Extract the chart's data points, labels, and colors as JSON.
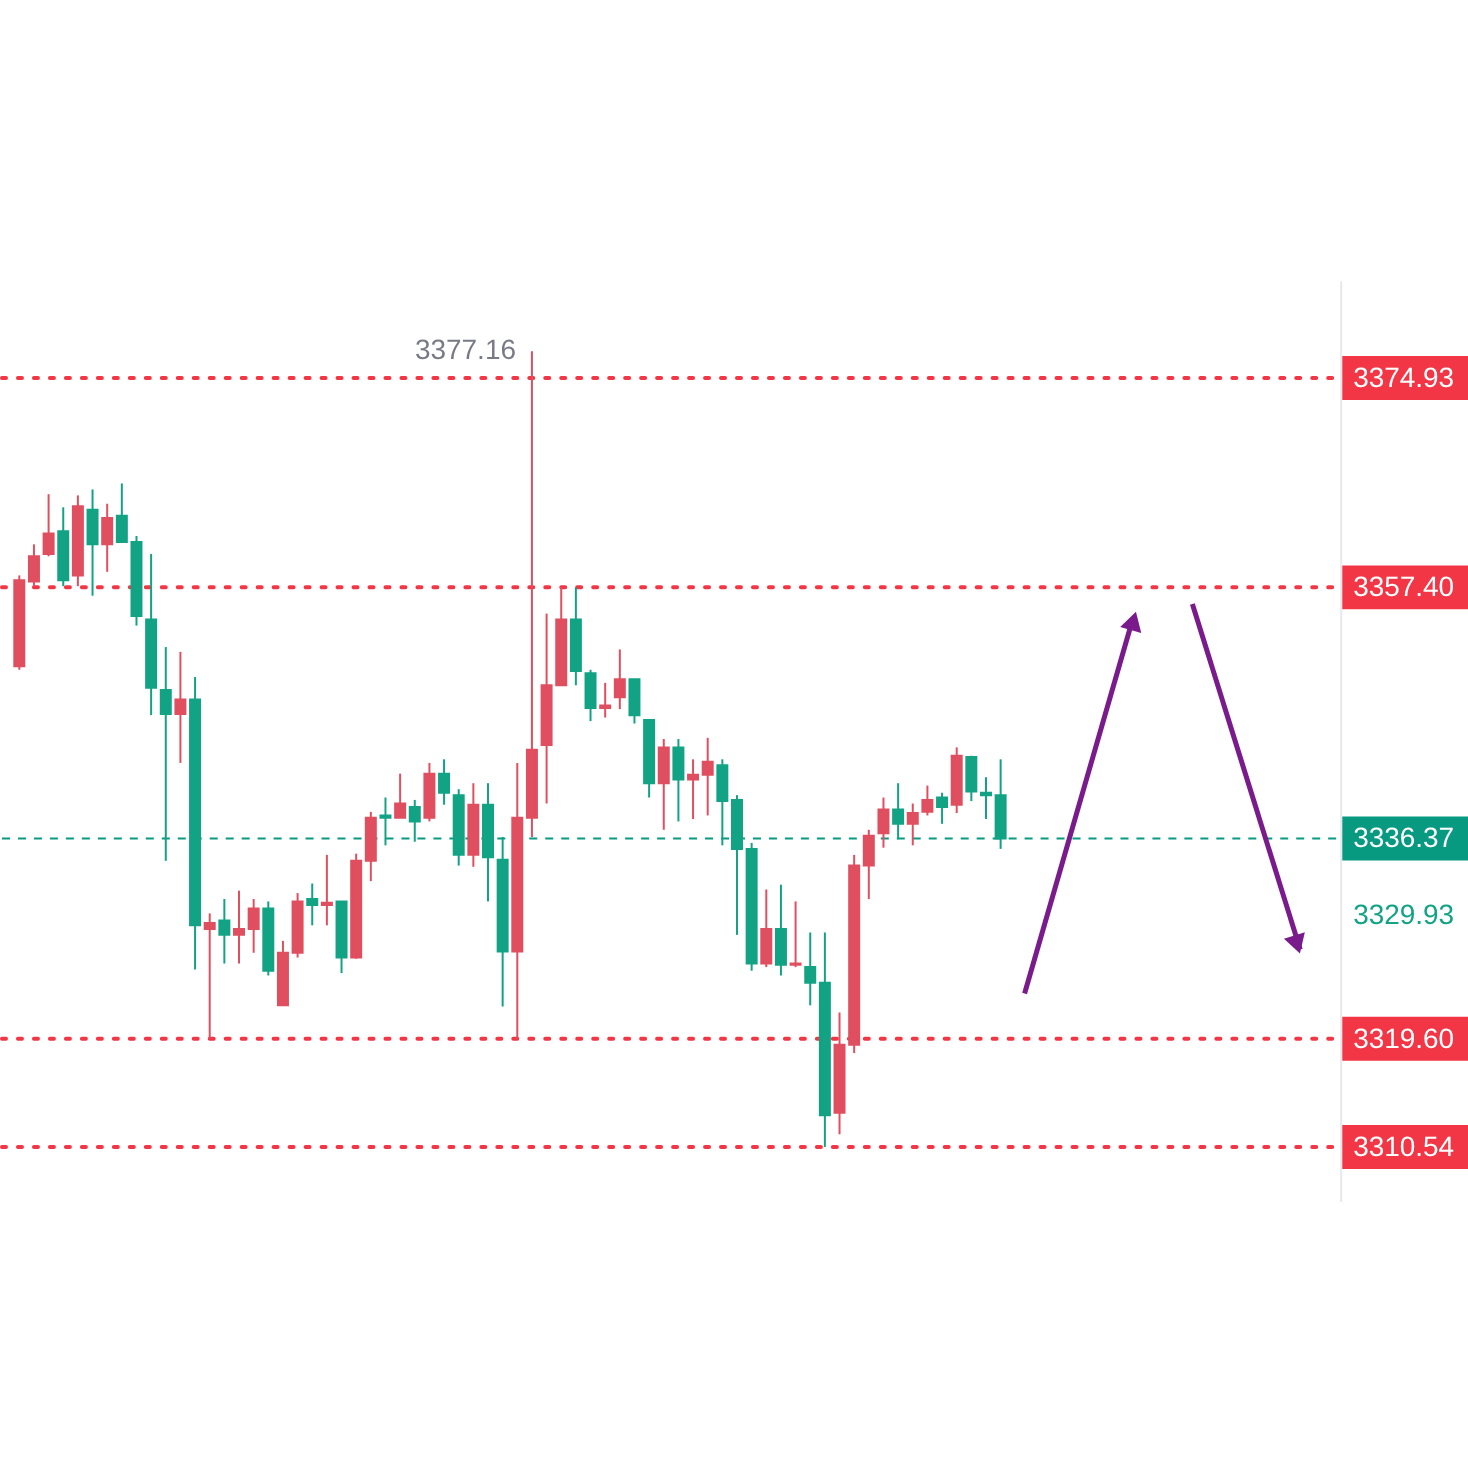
{
  "chart_data": {
    "type": "candlestick",
    "categories": [
      null,
      null,
      null,
      null,
      null,
      null,
      null,
      null,
      null,
      null,
      null,
      null,
      null,
      null,
      null,
      null,
      null,
      null,
      null,
      null,
      null,
      null,
      null,
      null,
      null,
      null,
      null,
      null,
      null,
      null,
      null,
      null,
      null,
      null,
      null,
      null,
      null,
      null,
      null,
      null,
      null,
      null,
      null,
      null,
      null,
      null,
      null,
      null,
      null,
      null,
      null,
      null,
      null,
      null,
      null,
      null,
      null,
      null,
      null,
      null,
      null,
      null,
      null,
      null,
      null,
      null,
      null,
      null,
      null,
      null,
      null,
      null,
      null,
      null,
      null,
      null,
      null,
      null,
      null,
      null,
      null,
      null,
      null,
      null,
      null,
      null,
      null,
      null,
      null,
      null
    ],
    "ohlc": [
      [
        3350.8,
        3358.4,
        3350.5,
        3358.0
      ],
      [
        3357.9,
        3361.0,
        3357.5,
        3360.0
      ],
      [
        3360.2,
        3365.2,
        3360.0,
        3361.9
      ],
      [
        3362.1,
        3364.1,
        3357.5,
        3358.0
      ],
      [
        3358.4,
        3365.1,
        3357.5,
        3364.2
      ],
      [
        3363.9,
        3365.6,
        3356.7,
        3361.0
      ],
      [
        3361.0,
        3364.4,
        3358.7,
        3363.2
      ],
      [
        3363.4,
        3366.1,
        3361.2,
        3361.2
      ],
      [
        3361.2,
        3361.7,
        3354.2,
        3355.0
      ],
      [
        3354.7,
        3360.2,
        3346.7,
        3349.0
      ],
      [
        3348.8,
        3352.4,
        3334.5,
        3346.8
      ],
      [
        3346.8,
        3352.0,
        3342.7,
        3348.0
      ],
      [
        3348.0,
        3349.9,
        3325.4,
        3329.1
      ],
      [
        3328.8,
        3330.1,
        3319.6,
        3329.3
      ],
      [
        3329.5,
        3331.3,
        3325.9,
        3328.3
      ],
      [
        3328.3,
        3332.0,
        3325.9,
        3328.8
      ],
      [
        3328.8,
        3331.3,
        3326.8,
        3330.5
      ],
      [
        3330.5,
        3331.1,
        3324.9,
        3325.3
      ],
      [
        3322.4,
        3327.8,
        3322.4,
        3326.8
      ],
      [
        3326.8,
        3331.8,
        3326.4,
        3331.1
      ],
      [
        3331.3,
        3332.6,
        3329.1,
        3330.8
      ],
      [
        3330.8,
        3335.0,
        3329.1,
        3331.0
      ],
      [
        3331.1,
        3331.1,
        3325.1,
        3326.4
      ],
      [
        3326.4,
        3335.1,
        3326.3,
        3334.5
      ],
      [
        3334.5,
        3338.6,
        3332.8,
        3338.1
      ],
      [
        3338.3,
        3339.8,
        3335.8,
        3338.1
      ],
      [
        3338.1,
        3341.8,
        3338.1,
        3339.3
      ],
      [
        3339.0,
        3339.6,
        3336.1,
        3337.8
      ],
      [
        3338.1,
        3342.7,
        3337.8,
        3341.8
      ],
      [
        3341.8,
        3343.0,
        3339.2,
        3340.2
      ],
      [
        3340.0,
        3340.5,
        3334.1,
        3335.0
      ],
      [
        3335.0,
        3341.0,
        3334.0,
        3339.2
      ],
      [
        3339.2,
        3341.0,
        3331.1,
        3334.8
      ],
      [
        3334.6,
        3336.5,
        3322.3,
        3326.9
      ],
      [
        3326.9,
        3342.7,
        3319.6,
        3338.1
      ],
      [
        3338.1,
        3377.16,
        3336.5,
        3343.8
      ],
      [
        3344.2,
        3355.2,
        3339.3,
        3349.2
      ],
      [
        3349.2,
        3357.4,
        3349.2,
        3354.7
      ],
      [
        3354.7,
        3357.4,
        3349.2,
        3350.4
      ],
      [
        3350.2,
        3350.5,
        3346.2,
        3347.3
      ],
      [
        3347.3,
        3349.4,
        3346.5,
        3347.5
      ],
      [
        3348.2,
        3352.2,
        3347.2,
        3349.7
      ],
      [
        3349.7,
        3349.7,
        3346.0,
        3346.7
      ],
      [
        3346.3,
        3346.3,
        3339.8,
        3341.0
      ],
      [
        3341.0,
        3344.7,
        3337.1,
        3344.0
      ],
      [
        3344.0,
        3344.7,
        3337.8,
        3341.3
      ],
      [
        3341.3,
        3343.0,
        3338.0,
        3341.7
      ],
      [
        3341.7,
        3344.8,
        3338.3,
        3342.8
      ],
      [
        3342.5,
        3343.0,
        3335.8,
        3339.5
      ],
      [
        3339.6,
        3340.0,
        3328.3,
        3335.5
      ],
      [
        3335.5,
        3336.0,
        3325.3,
        3325.9
      ],
      [
        3325.9,
        3332.1,
        3325.6,
        3328.8
      ],
      [
        3328.8,
        3332.5,
        3324.9,
        3325.8
      ],
      [
        3325.8,
        3331.1,
        3325.6,
        3325.9
      ],
      [
        3325.6,
        3328.5,
        3322.4,
        3324.3
      ],
      [
        3324.3,
        3328.5,
        3310.54,
        3313.2
      ],
      [
        3313.4,
        3321.8,
        3311.6,
        3319.1
      ],
      [
        3319.1,
        3335.0,
        3318.4,
        3334.1
      ],
      [
        3334.1,
        3337.1,
        3331.3,
        3336.6
      ],
      [
        3336.8,
        3339.8,
        3335.6,
        3338.8
      ],
      [
        3338.8,
        3341.0,
        3336.3,
        3337.6
      ],
      [
        3337.6,
        3339.3,
        3335.8,
        3338.5
      ],
      [
        3338.6,
        3340.8,
        3338.3,
        3339.6
      ],
      [
        3339.8,
        3340.2,
        3337.6,
        3339.0
      ],
      [
        3339.2,
        3344.0,
        3338.5,
        3343.3
      ],
      [
        3343.2,
        3343.3,
        3339.5,
        3340.3
      ],
      [
        3340.2,
        3341.5,
        3338.0,
        3340.0
      ],
      [
        3340.0,
        3343.0,
        3335.5,
        3336.37
      ],
      null,
      null,
      null,
      null,
      null,
      null,
      null,
      null,
      null,
      null,
      null,
      null,
      null,
      null,
      null,
      null,
      null,
      null,
      null,
      null,
      null,
      null
    ],
    "colors": [
      "#e04f5f",
      "#e04f5f",
      "#e04f5f",
      "#12a385",
      "#e04f5f",
      "#12a385",
      "#e04f5f",
      "#12a385",
      "#12a385",
      "#12a385",
      "#12a385",
      "#e04f5f",
      "#12a385",
      "#e04f5f",
      "#12a385",
      "#e04f5f",
      "#e04f5f",
      "#12a385",
      "#e04f5f",
      "#e04f5f",
      "#12a385",
      "#e04f5f",
      "#12a385",
      "#e04f5f",
      "#e04f5f",
      "#12a385",
      "#e04f5f",
      "#12a385",
      "#e04f5f",
      "#12a385",
      "#12a385",
      "#e04f5f",
      "#12a385",
      "#12a385",
      "#e04f5f",
      "#e04f5f",
      "#e04f5f",
      "#e04f5f",
      "#12a385",
      "#12a385",
      "#e04f5f",
      "#e04f5f",
      "#12a385",
      "#12a385",
      "#e04f5f",
      "#12a385",
      "#e04f5f",
      "#e04f5f",
      "#12a385",
      "#12a385",
      "#12a385",
      "#e04f5f",
      "#12a385",
      "#e04f5f",
      "#12a385",
      "#12a385",
      "#e04f5f",
      "#e04f5f",
      "#e04f5f",
      "#e04f5f",
      "#12a385",
      "#e04f5f",
      "#e04f5f",
      "#12a385",
      "#e04f5f",
      "#12a385",
      "#12a385",
      "#12a385",
      null,
      null,
      null,
      null,
      null,
      null,
      null,
      null,
      null,
      null,
      null,
      null,
      null,
      null,
      null,
      null,
      null,
      null,
      null,
      null,
      null,
      null
    ],
    "ylim": [
      3306.0,
      3383.1
    ],
    "yticks": [
      {
        "value": 3310.54,
        "label": "3310.54"
      },
      {
        "value": 3319.6,
        "label": "3319.60"
      },
      {
        "value": 3329.93,
        "label": "3329.93"
      },
      {
        "value": 3336.37,
        "label": "3336.37"
      },
      {
        "value": 3357.4,
        "label": "3357.40"
      },
      {
        "value": 3374.93,
        "label": "3374.93"
      }
    ],
    "ref_lines": [
      {
        "axis": "y",
        "value": 3374.93,
        "color": "#f23645",
        "line_style": "dotted"
      },
      {
        "axis": "y",
        "value": 3357.4,
        "color": "#f23645",
        "line_style": "dotted"
      },
      {
        "axis": "y",
        "value": 3336.37,
        "color": "#089981",
        "line_style": "dashed"
      },
      {
        "axis": "y",
        "value": 3319.6,
        "color": "#f23645",
        "line_style": "dotted"
      },
      {
        "axis": "y",
        "value": 3310.54,
        "color": "#f23645",
        "line_style": "dotted"
      }
    ],
    "annotations": [
      "3377.16"
    ],
    "grid": false,
    "tick_labels": "y"
  }
}
